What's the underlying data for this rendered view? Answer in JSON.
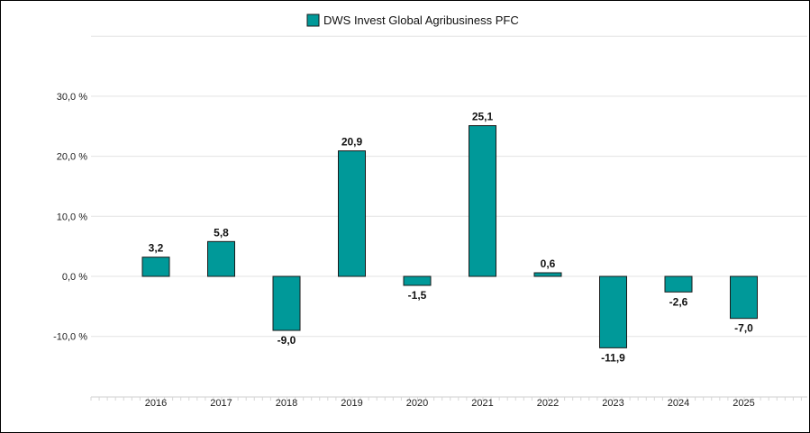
{
  "chart_data": {
    "type": "bar",
    "legend": {
      "position": "top",
      "entries": [
        {
          "name": "DWS Invest Global Agribusiness PFC",
          "color": "#009999"
        }
      ]
    },
    "categories": [
      "2016",
      "2017",
      "2018",
      "2019",
      "2020",
      "2021",
      "2022",
      "2023",
      "2024",
      "2025"
    ],
    "series": [
      {
        "name": "DWS Invest Global Agribusiness PFC",
        "values": [
          3.2,
          5.8,
          -9.0,
          20.9,
          -1.5,
          25.1,
          0.6,
          -11.9,
          -2.6,
          -7.0
        ],
        "labels": [
          "3,2",
          "5,8",
          "-9,0",
          "20,9",
          "-1,5",
          "25,1",
          "0,6",
          "-11,9",
          "-2,6",
          "-7,0"
        ],
        "color": "#009999"
      }
    ],
    "yaxis": {
      "ticks": [
        -10,
        0,
        10,
        20,
        30
      ],
      "tick_labels": [
        "-10,0 %",
        "0,0 %",
        "10,0 %",
        "20,0 %",
        "30,0 %"
      ],
      "range": [
        -20,
        40
      ]
    },
    "grid": true
  }
}
